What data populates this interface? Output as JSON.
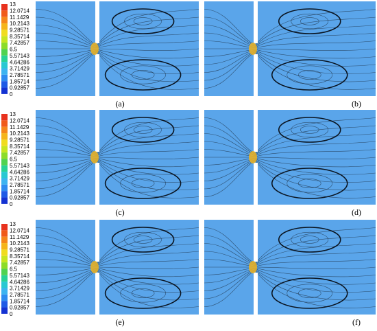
{
  "legends": [
    {
      "labels": [
        13,
        12.0714,
        11.1429,
        10.2143,
        9.28571,
        8.35714,
        7.42857,
        6.5,
        5.57143,
        4.64286,
        3.71429,
        2.78571,
        1.85714,
        0.92857,
        0
      ]
    },
    {
      "labels": [
        13,
        12.0714,
        11.1429,
        10.2143,
        9.28571,
        8.35714,
        7.42857,
        6.5,
        5.57143,
        4.64286,
        3.71429,
        2.78571,
        1.85714,
        0.92857,
        0
      ]
    },
    {
      "labels": [
        13,
        12.0714,
        11.1429,
        10.2143,
        9.28571,
        8.35714,
        7.42857,
        6.5,
        5.57143,
        4.64286,
        3.71429,
        2.78571,
        1.85714,
        0.92857,
        0
      ]
    }
  ],
  "panels": [
    {
      "label": "(a)"
    },
    {
      "label": "(b)"
    },
    {
      "label": "(c)"
    },
    {
      "label": "(d)"
    },
    {
      "label": "(e)"
    },
    {
      "label": "(f)"
    }
  ]
}
